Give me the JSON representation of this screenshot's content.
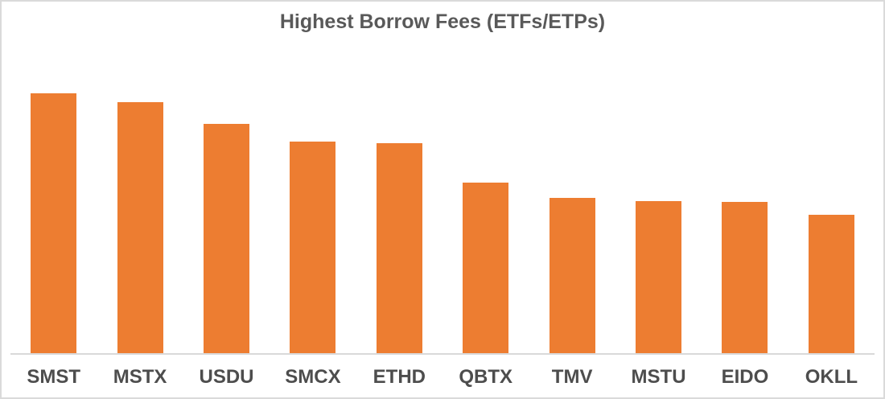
{
  "chart_data": {
    "type": "bar",
    "title": "Highest Borrow Fees (ETFs/ETPs)",
    "categories": [
      "SMST",
      "MSTX",
      "USDU",
      "SMCX",
      "ETHD",
      "QBTX",
      "TMV",
      "MSTU",
      "EIDO",
      "OKLL"
    ],
    "values": [
      100,
      96.6,
      88.2,
      81.4,
      80.8,
      65.6,
      59.8,
      58.5,
      58.2,
      53.3
    ],
    "value_unit": "relative bar height, percent of tallest bar (no y-axis scale shown in chart)",
    "xlabel": "",
    "ylabel": "",
    "legend": "none",
    "grid": false,
    "y_axis_visible": false,
    "x_axis_line_visible": true,
    "colors": {
      "bar": "#ED7D31",
      "axis_line": "#D9D9D9",
      "title": "#595959",
      "tick_label": "#4D4D4D",
      "frame_border": "#DADADA",
      "background": "#FFFFFF"
    }
  }
}
